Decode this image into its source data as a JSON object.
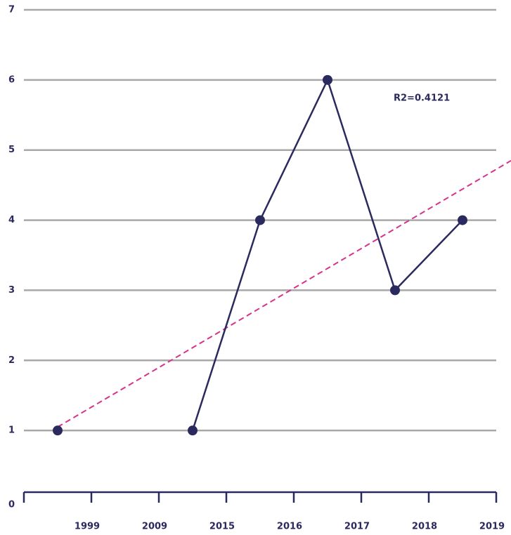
{
  "chart_data": {
    "type": "line",
    "categories": [
      "1999",
      "2009",
      "2015",
      "2016",
      "2017",
      "2018",
      "2019"
    ],
    "series": [
      {
        "color": "#2b2a5e",
        "values": [
          1,
          null,
          1,
          4,
          6,
          3,
          4
        ]
      }
    ],
    "trendline": {
      "color": "#d6338c",
      "x": [
        0,
        6.72
      ],
      "values": [
        1.05,
        4.85
      ]
    },
    "annotation": "R2=0.4121",
    "ylim": [
      0,
      7
    ],
    "yticks": [
      0,
      1,
      2,
      3,
      4,
      5,
      6,
      7
    ],
    "grid": true
  }
}
